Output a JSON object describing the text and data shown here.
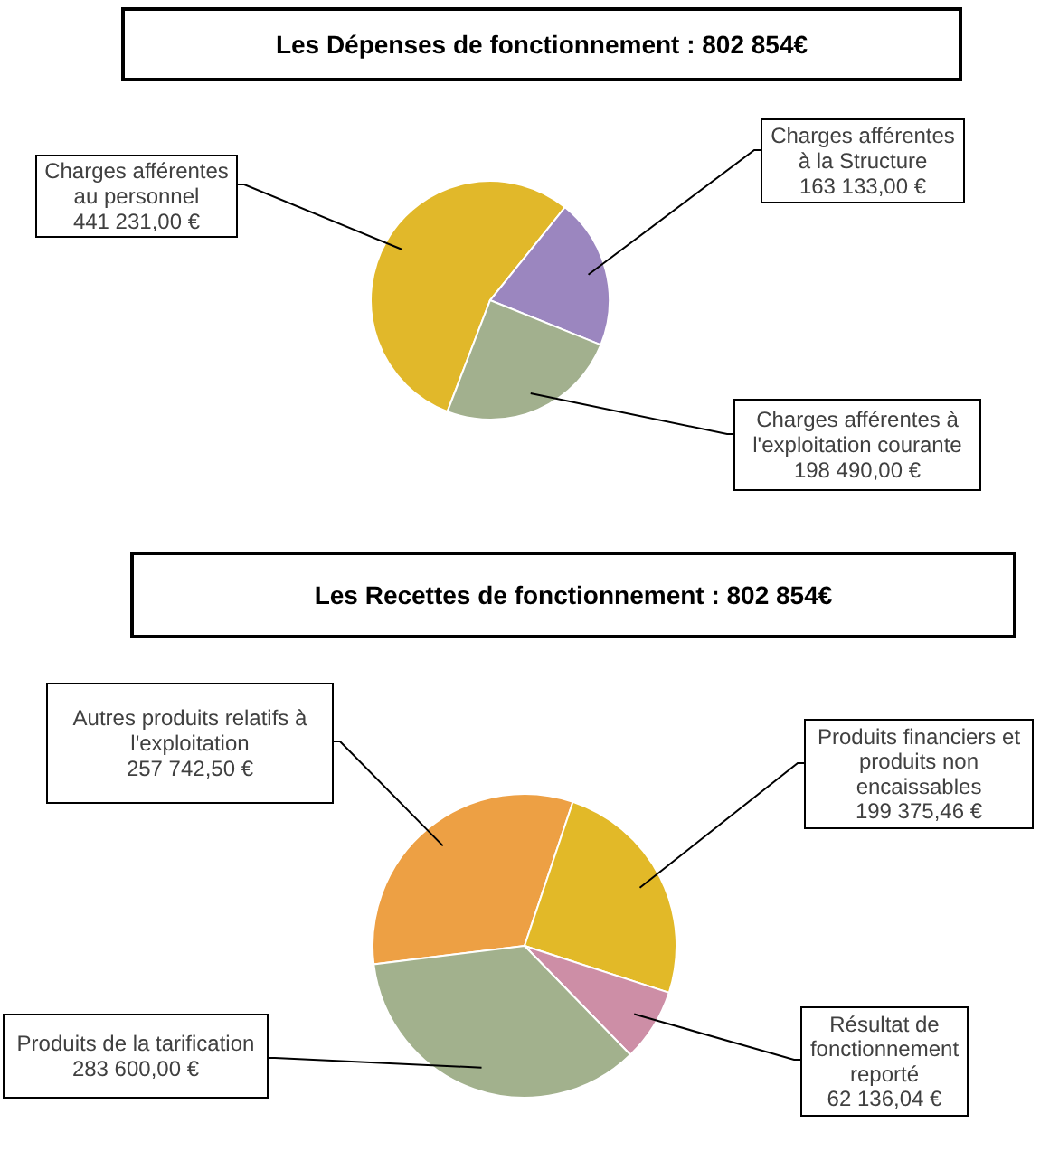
{
  "chart_data": [
    {
      "type": "pie",
      "title": "Les Dépenses de fonctionnement : 802 854€",
      "categories": [
        "Charges afférentes au personnel",
        "Charges afférentes à la Structure",
        "Charges afférentes à l'exploitation courante"
      ],
      "values": [
        441231.0,
        163133.0,
        198490.0
      ],
      "value_labels": [
        "441 231,00 €",
        "163 133,00 €",
        "198 490,00 €"
      ],
      "colors": [
        "#e1b82a",
        "#9b86bf",
        "#a2b08e"
      ]
    },
    {
      "type": "pie",
      "title": "Les Recettes de fonctionnement : 802 854€",
      "categories": [
        "Autres produits relatifs à l'exploitation",
        "Produits financiers et produits non encaissables",
        "Résultat de fonctionnement reporté",
        "Produits de la tarification"
      ],
      "values": [
        257742.5,
        199375.46,
        62136.04,
        283600.0
      ],
      "value_labels": [
        "257 742,50 €",
        "199 375,46 €",
        "62 136,04 €",
        "283 600,00 €"
      ],
      "colors": [
        "#eda044",
        "#e2b928",
        "#cd8ea6",
        "#a2b18d"
      ]
    }
  ]
}
